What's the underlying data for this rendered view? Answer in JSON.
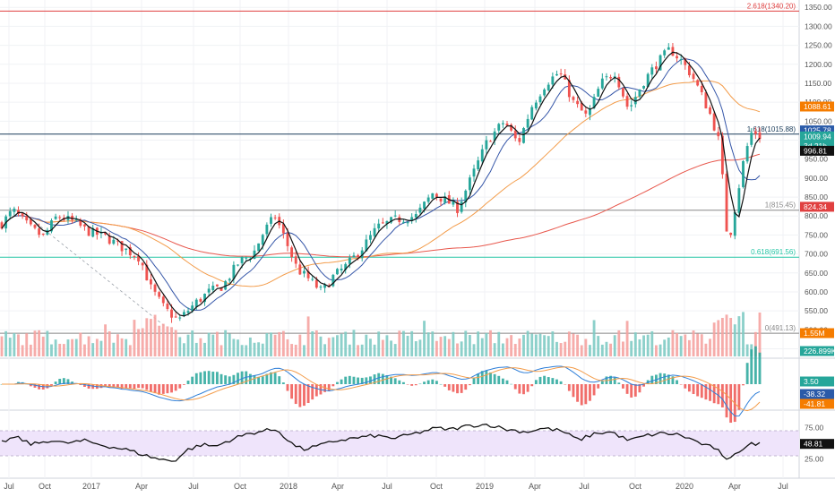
{
  "chart_data": [
    {
      "type": "candlestick",
      "pane": "price",
      "x_ticks": [
        "Jul",
        "Oct",
        "2017",
        "Apr",
        "Jul",
        "Oct",
        "2018",
        "Apr",
        "Jul",
        "Oct",
        "2019",
        "Apr",
        "Jul",
        "Oct",
        "2020",
        "Apr",
        "Jul"
      ],
      "y_ticks": [
        450,
        500,
        550,
        600,
        650,
        700,
        750,
        800,
        850,
        900,
        950,
        1000,
        1050,
        1100,
        1150,
        1200,
        1250,
        1300,
        1350
      ],
      "ylim": [
        430,
        1360
      ],
      "price_anchors": [
        {
          "x": 0,
          "y": 780
        },
        {
          "x": 8,
          "y": 815
        },
        {
          "x": 20,
          "y": 770
        },
        {
          "x": 30,
          "y": 745
        },
        {
          "x": 40,
          "y": 800
        },
        {
          "x": 52,
          "y": 785
        },
        {
          "x": 62,
          "y": 760
        },
        {
          "x": 75,
          "y": 745
        },
        {
          "x": 88,
          "y": 715
        },
        {
          "x": 100,
          "y": 690
        },
        {
          "x": 108,
          "y": 610
        },
        {
          "x": 118,
          "y": 555
        },
        {
          "x": 128,
          "y": 525
        },
        {
          "x": 140,
          "y": 570
        },
        {
          "x": 150,
          "y": 600
        },
        {
          "x": 160,
          "y": 615
        },
        {
          "x": 172,
          "y": 680
        },
        {
          "x": 182,
          "y": 700
        },
        {
          "x": 190,
          "y": 760
        },
        {
          "x": 198,
          "y": 800
        },
        {
          "x": 205,
          "y": 740
        },
        {
          "x": 214,
          "y": 660
        },
        {
          "x": 222,
          "y": 635
        },
        {
          "x": 232,
          "y": 600
        },
        {
          "x": 240,
          "y": 640
        },
        {
          "x": 250,
          "y": 670
        },
        {
          "x": 262,
          "y": 720
        },
        {
          "x": 272,
          "y": 770
        },
        {
          "x": 285,
          "y": 790
        },
        {
          "x": 300,
          "y": 800
        },
        {
          "x": 312,
          "y": 860
        },
        {
          "x": 322,
          "y": 840
        },
        {
          "x": 330,
          "y": 820
        },
        {
          "x": 340,
          "y": 900
        },
        {
          "x": 352,
          "y": 1000
        },
        {
          "x": 364,
          "y": 1050
        },
        {
          "x": 374,
          "y": 990
        },
        {
          "x": 384,
          "y": 1090
        },
        {
          "x": 394,
          "y": 1150
        },
        {
          "x": 404,
          "y": 1180
        },
        {
          "x": 414,
          "y": 1100
        },
        {
          "x": 424,
          "y": 1060
        },
        {
          "x": 434,
          "y": 1150
        },
        {
          "x": 444,
          "y": 1180
        },
        {
          "x": 454,
          "y": 1080
        },
        {
          "x": 464,
          "y": 1150
        },
        {
          "x": 474,
          "y": 1200
        },
        {
          "x": 484,
          "y": 1240
        },
        {
          "x": 492,
          "y": 1210
        },
        {
          "x": 500,
          "y": 1170
        },
        {
          "x": 508,
          "y": 1110
        },
        {
          "x": 514,
          "y": 1060
        },
        {
          "x": 520,
          "y": 990
        },
        {
          "x": 526,
          "y": 720
        },
        {
          "x": 532,
          "y": 840
        },
        {
          "x": 538,
          "y": 960
        },
        {
          "x": 544,
          "y": 1030
        },
        {
          "x": 548,
          "y": 1010
        }
      ],
      "lines": [
        {
          "name": "",
          "label": "2.618(1340.20)",
          "y": 1340.2,
          "color": "#e04040"
        },
        {
          "name": "",
          "label": "1.618(1015.88)",
          "y": 1015.88,
          "color": "#1a3c5a"
        },
        {
          "name": "",
          "label": "1(815.45)",
          "y": 815.45,
          "color": "#888888"
        },
        {
          "name": "",
          "label": "0.618(691.56)",
          "y": 691.56,
          "color": "#26c6a6"
        },
        {
          "name": "",
          "label": "0(491.13)",
          "y": 491.13,
          "color": "#888888"
        }
      ],
      "price_badges": [
        {
          "label": "1088.61",
          "y": 1088.61,
          "color": "#f57c00"
        },
        {
          "label": "1025.78",
          "y": 1025.78,
          "color": "#2a5aa8"
        },
        {
          "label": "1009.94",
          "y": 1009.94,
          "color": "#26a69a"
        },
        {
          "label": "3d 21h",
          "y": 985,
          "color": "#26a69a"
        },
        {
          "label": "996.81",
          "y": 972,
          "color": "#111111"
        },
        {
          "label": "824.34",
          "y": 824.34,
          "color": "#e04040"
        }
      ],
      "volume_badges": [
        {
          "label": "1.55M",
          "color": "#f57c00"
        },
        {
          "label": "226.899K",
          "color": "#26a69a"
        }
      ]
    },
    {
      "type": "histogram",
      "pane": "macd",
      "y_ticks": [],
      "badges": [
        {
          "label": "3.50",
          "color": "#26a69a"
        },
        {
          "label": "-38.32",
          "color": "#2a5aa8"
        },
        {
          "label": "-41.81",
          "color": "#f57c00"
        }
      ]
    },
    {
      "type": "line",
      "pane": "rsi",
      "y_ticks": [
        75,
        25
      ],
      "ylim": [
        0,
        100
      ],
      "band": [
        30,
        70
      ],
      "rsi_anchors": [
        {
          "x": 0,
          "y": 52
        },
        {
          "x": 10,
          "y": 60
        },
        {
          "x": 22,
          "y": 48
        },
        {
          "x": 35,
          "y": 55
        },
        {
          "x": 45,
          "y": 50
        },
        {
          "x": 60,
          "y": 54
        },
        {
          "x": 75,
          "y": 46
        },
        {
          "x": 90,
          "y": 40
        },
        {
          "x": 105,
          "y": 30
        },
        {
          "x": 115,
          "y": 24
        },
        {
          "x": 125,
          "y": 22
        },
        {
          "x": 135,
          "y": 40
        },
        {
          "x": 145,
          "y": 48
        },
        {
          "x": 155,
          "y": 45
        },
        {
          "x": 165,
          "y": 55
        },
        {
          "x": 178,
          "y": 65
        },
        {
          "x": 190,
          "y": 70
        },
        {
          "x": 200,
          "y": 72
        },
        {
          "x": 208,
          "y": 52
        },
        {
          "x": 218,
          "y": 40
        },
        {
          "x": 230,
          "y": 46
        },
        {
          "x": 242,
          "y": 54
        },
        {
          "x": 255,
          "y": 58
        },
        {
          "x": 270,
          "y": 62
        },
        {
          "x": 285,
          "y": 58
        },
        {
          "x": 300,
          "y": 66
        },
        {
          "x": 314,
          "y": 74
        },
        {
          "x": 325,
          "y": 72
        },
        {
          "x": 338,
          "y": 78
        },
        {
          "x": 352,
          "y": 80
        },
        {
          "x": 366,
          "y": 72
        },
        {
          "x": 380,
          "y": 68
        },
        {
          "x": 392,
          "y": 74
        },
        {
          "x": 405,
          "y": 70
        },
        {
          "x": 418,
          "y": 55
        },
        {
          "x": 430,
          "y": 66
        },
        {
          "x": 442,
          "y": 68
        },
        {
          "x": 454,
          "y": 54
        },
        {
          "x": 466,
          "y": 62
        },
        {
          "x": 478,
          "y": 66
        },
        {
          "x": 490,
          "y": 64
        },
        {
          "x": 500,
          "y": 56
        },
        {
          "x": 510,
          "y": 46
        },
        {
          "x": 518,
          "y": 42
        },
        {
          "x": 524,
          "y": 20
        },
        {
          "x": 530,
          "y": 34
        },
        {
          "x": 538,
          "y": 42
        },
        {
          "x": 544,
          "y": 50
        },
        {
          "x": 548,
          "y": 49
        }
      ],
      "badge": {
        "label": "48.81",
        "color": "#111111"
      }
    }
  ]
}
